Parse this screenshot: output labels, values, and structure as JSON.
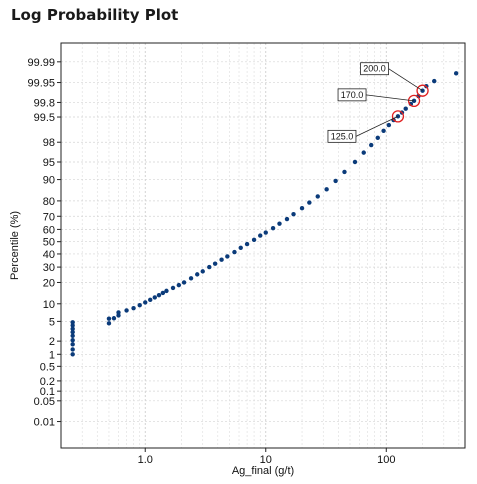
{
  "page_title": "Log Probability Plot",
  "chart_data": {
    "type": "scatter",
    "title": "Log Probability Plot",
    "xlabel": "Ag_final (g/t)",
    "ylabel": "Percentile (%)",
    "x_scale": "log",
    "y_scale": "probability",
    "xlim": [
      0.2,
      450
    ],
    "ylim_percent": [
      0.001,
      99.998
    ],
    "grid": true,
    "x_ticks": [
      {
        "value": 1,
        "label": "1.0"
      },
      {
        "value": 10,
        "label": "10"
      },
      {
        "value": 100,
        "label": "100"
      }
    ],
    "y_ticks": [
      {
        "value": 0.01,
        "label": "0.01"
      },
      {
        "value": 0.05,
        "label": "0.05"
      },
      {
        "value": 0.1,
        "label": "0.1"
      },
      {
        "value": 0.2,
        "label": "0.2"
      },
      {
        "value": 0.5,
        "label": "0.5"
      },
      {
        "value": 1,
        "label": "1"
      },
      {
        "value": 2,
        "label": "2"
      },
      {
        "value": 5,
        "label": "5"
      },
      {
        "value": 10,
        "label": "10"
      },
      {
        "value": 20,
        "label": "20"
      },
      {
        "value": 30,
        "label": "30"
      },
      {
        "value": 40,
        "label": "40"
      },
      {
        "value": 50,
        "label": "50"
      },
      {
        "value": 60,
        "label": "60"
      },
      {
        "value": 70,
        "label": "70"
      },
      {
        "value": 80,
        "label": "80"
      },
      {
        "value": 90,
        "label": "90"
      },
      {
        "value": 95,
        "label": "95"
      },
      {
        "value": 98,
        "label": "98"
      },
      {
        "value": 99.5,
        "label": "99.5"
      },
      {
        "value": 99.8,
        "label": "99.8"
      },
      {
        "value": 99.95,
        "label": "99.95"
      },
      {
        "value": 99.99,
        "label": "99.99"
      }
    ],
    "series": [
      {
        "color": "#0b3b7a",
        "points": [
          [
            0.25,
            1.0
          ],
          [
            0.25,
            1.3
          ],
          [
            0.25,
            1.7
          ],
          [
            0.25,
            2.1
          ],
          [
            0.25,
            2.6
          ],
          [
            0.25,
            3.1
          ],
          [
            0.25,
            3.6
          ],
          [
            0.25,
            4.2
          ],
          [
            0.25,
            4.8
          ],
          [
            0.5,
            4.6
          ],
          [
            0.5,
            5.6
          ],
          [
            0.55,
            5.7
          ],
          [
            0.6,
            6.4
          ],
          [
            0.6,
            7.2
          ],
          [
            0.7,
            7.8
          ],
          [
            0.8,
            8.5
          ],
          [
            0.9,
            9.5
          ],
          [
            1.0,
            10.5
          ],
          [
            1.1,
            11.5
          ],
          [
            1.2,
            12.5
          ],
          [
            1.3,
            13.5
          ],
          [
            1.4,
            14.5
          ],
          [
            1.5,
            15.5
          ],
          [
            1.7,
            17
          ],
          [
            1.9,
            18.5
          ],
          [
            2.1,
            20
          ],
          [
            2.4,
            22.5
          ],
          [
            2.7,
            25
          ],
          [
            3.0,
            27
          ],
          [
            3.4,
            30
          ],
          [
            3.8,
            32.5
          ],
          [
            4.3,
            35.5
          ],
          [
            4.8,
            38
          ],
          [
            5.5,
            41.5
          ],
          [
            6.2,
            45
          ],
          [
            7.0,
            48
          ],
          [
            8.0,
            51.5
          ],
          [
            9.0,
            55
          ],
          [
            10.0,
            57.5
          ],
          [
            11.5,
            61
          ],
          [
            13,
            64.5
          ],
          [
            15,
            68
          ],
          [
            17,
            71.5
          ],
          [
            20,
            75.5
          ],
          [
            23,
            79
          ],
          [
            27,
            82.5
          ],
          [
            32,
            86
          ],
          [
            38,
            89.5
          ],
          [
            45,
            92.5
          ],
          [
            55,
            95
          ],
          [
            65,
            96.7
          ],
          [
            75,
            97.7
          ],
          [
            85,
            98.4
          ],
          [
            95,
            98.9
          ],
          [
            105,
            99.2
          ],
          [
            115,
            99.4
          ],
          [
            125,
            99.52
          ],
          [
            135,
            99.62
          ],
          [
            145,
            99.7
          ],
          [
            160,
            99.78
          ],
          [
            170,
            99.82
          ],
          [
            185,
            99.87
          ],
          [
            200,
            99.91
          ],
          [
            215,
            99.935
          ],
          [
            250,
            99.955
          ],
          [
            380,
            99.975
          ]
        ]
      }
    ],
    "annotations": [
      {
        "label": "200.0",
        "x": 200,
        "y": 99.91
      },
      {
        "label": "170.0",
        "x": 170,
        "y": 99.82
      },
      {
        "label": "125.0",
        "x": 125,
        "y": 99.52
      }
    ]
  }
}
